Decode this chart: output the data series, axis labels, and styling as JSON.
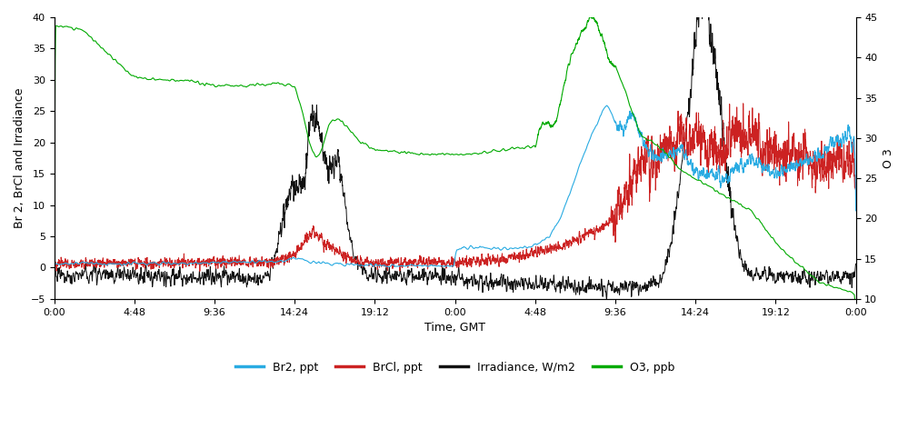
{
  "left_ylim": [
    -5,
    40
  ],
  "right_ylim": [
    10,
    45
  ],
  "left_yticks": [
    -5,
    0,
    5,
    10,
    15,
    20,
    25,
    30,
    35,
    40
  ],
  "right_yticks": [
    10,
    15,
    20,
    25,
    30,
    35,
    40,
    45
  ],
  "ylabel_left": "Br 2, BrCl and Irradiance",
  "ylabel_right": "O 3",
  "xlabel": "Time, GMT",
  "xtick_labels": [
    "0:00",
    "4:48",
    "9:36",
    "14:24",
    "19:12",
    "0:00",
    "4:48",
    "9:36",
    "14:24",
    "19:12",
    "0:00"
  ],
  "colors": {
    "br2": "#29ABE2",
    "brcl": "#CC2222",
    "irradiance": "#111111",
    "o3": "#00AA00"
  },
  "legend_labels": [
    "Br2, ppt",
    "BrCl, ppt",
    "Irradiance, W/m2",
    "O3, ppb"
  ],
  "background_color": "#ffffff"
}
